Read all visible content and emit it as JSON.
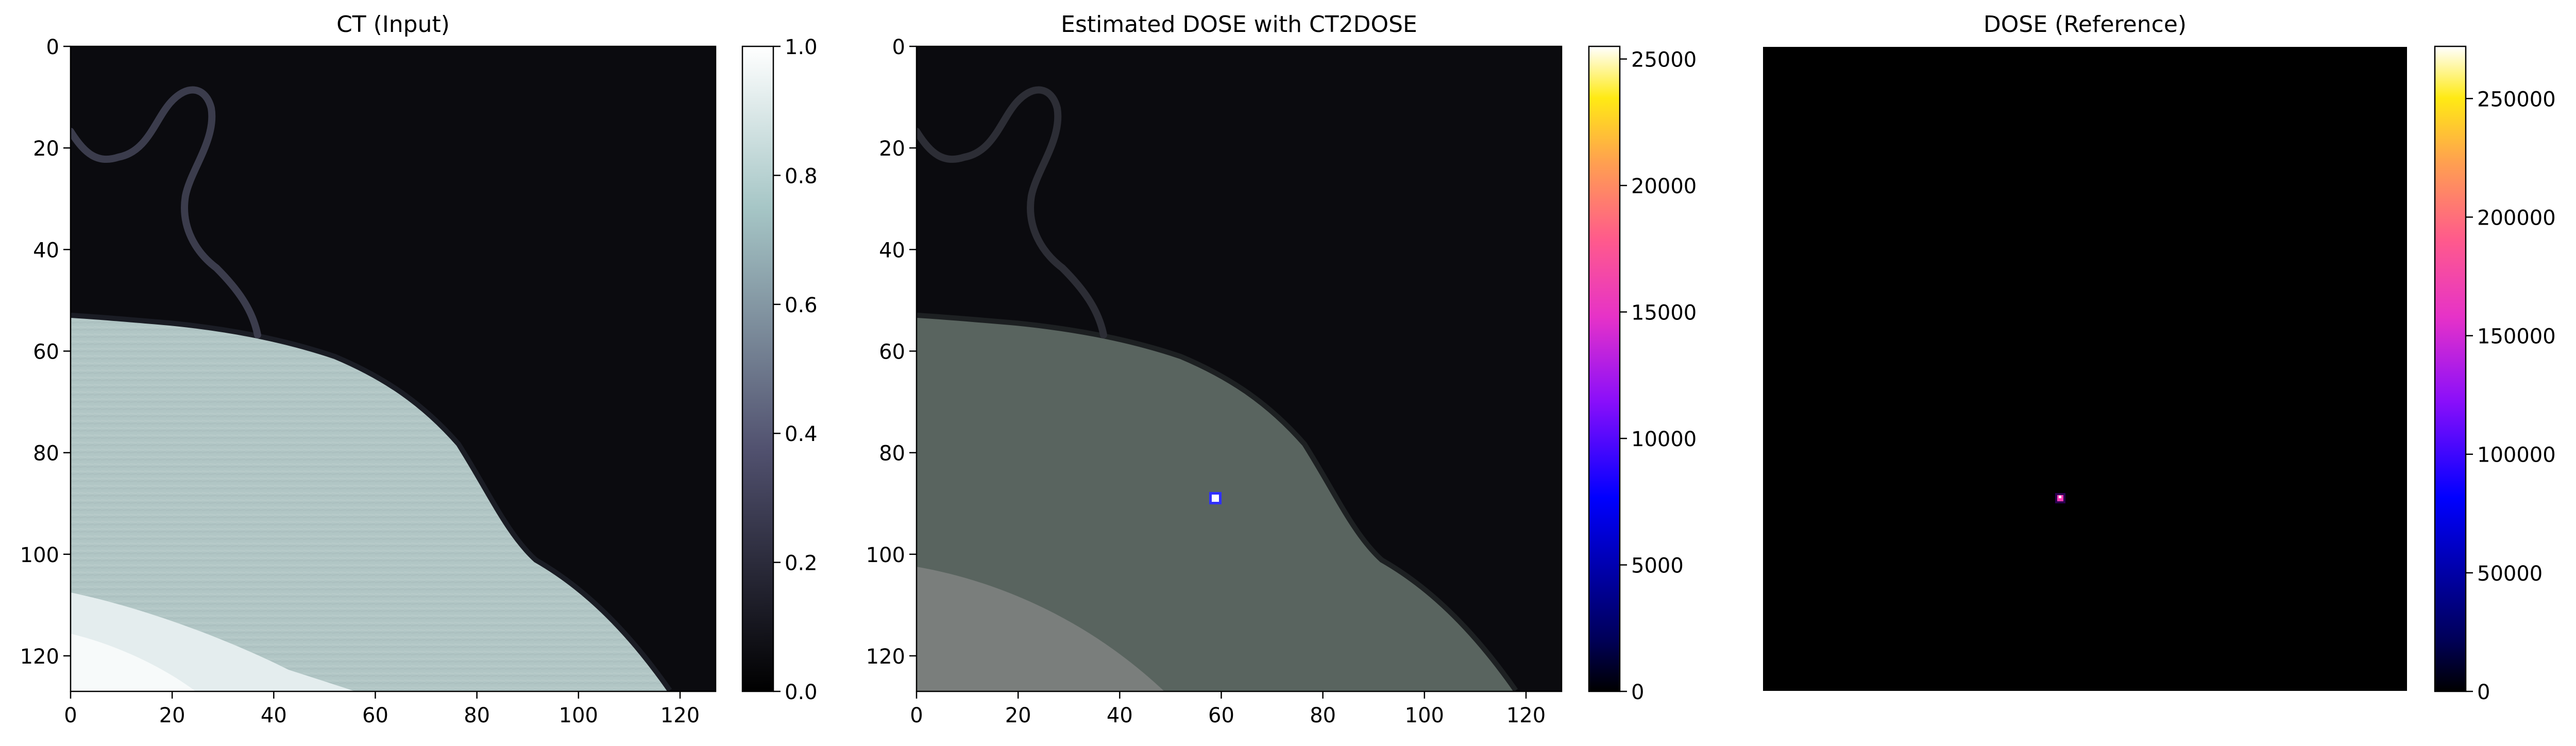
{
  "chart_data": [
    {
      "type": "heatmap",
      "title": "CT (Input)",
      "colormap": "bone",
      "x_ticks": [
        0,
        20,
        40,
        60,
        80,
        100,
        120
      ],
      "y_ticks": [
        0,
        20,
        40,
        60,
        80,
        100,
        120
      ],
      "xlim": [
        0,
        127
      ],
      "ylim": [
        127,
        0
      ],
      "show_x_axis": true,
      "show_y_axis": true,
      "colorbar": {
        "min": 0.0,
        "max": 1.0,
        "ticks": [
          "0.0",
          "0.2",
          "0.4",
          "0.6",
          "0.8",
          "1.0"
        ]
      }
    },
    {
      "type": "heatmap",
      "title": "Estimated DOSE with CT2DOSE",
      "colormap": "gnuplot2 overlay on CT",
      "x_ticks": [
        0,
        20,
        40,
        60,
        80,
        100,
        120
      ],
      "y_ticks": [
        0,
        20,
        40,
        60,
        80,
        100,
        120
      ],
      "xlim": [
        0,
        127
      ],
      "ylim": [
        127,
        0
      ],
      "show_x_axis": true,
      "show_y_axis": true,
      "hotspot": {
        "x": 59,
        "y": 89
      },
      "colorbar": {
        "min": 0,
        "max": 25500,
        "ticks": [
          "0",
          "5000",
          "10000",
          "15000",
          "20000",
          "25000"
        ]
      }
    },
    {
      "type": "heatmap",
      "title": "DOSE (Reference)",
      "colormap": "gnuplot2",
      "xlim": [
        0,
        127
      ],
      "ylim": [
        127,
        0
      ],
      "show_x_axis": false,
      "show_y_axis": false,
      "hotspot": {
        "x": 59,
        "y": 89
      },
      "colorbar": {
        "min": 0,
        "max": 272000,
        "ticks": [
          "0",
          "50000",
          "100000",
          "150000",
          "200000",
          "250000"
        ]
      }
    }
  ]
}
